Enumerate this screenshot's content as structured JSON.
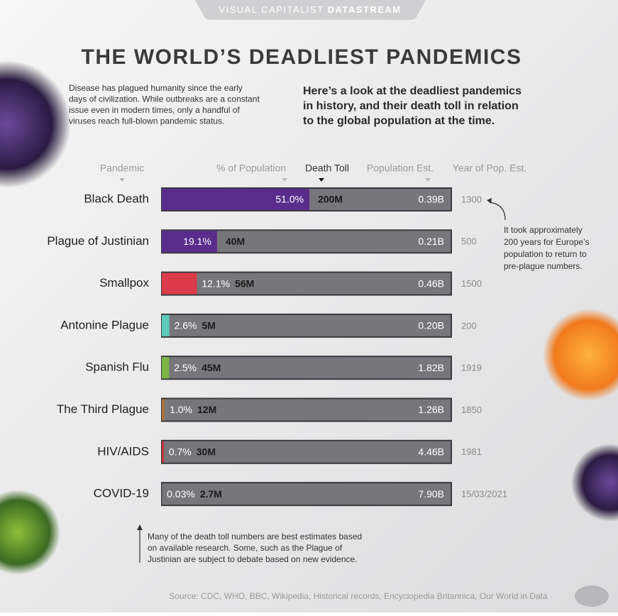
{
  "chart_data": {
    "type": "bar",
    "orientation": "horizontal",
    "brand": [
      "VISUAL CAPITALIST",
      "DATASTREAM"
    ],
    "title": "THE WORLD’S DEADLIEST PANDEMICS",
    "intro": [
      "Disease has plagued humanity since the early",
      "days of civilization. While outbreaks are a constant",
      "issue even in modern times, only a handful of",
      "viruses reach full-blown pandemic status."
    ],
    "subtitle": [
      "Here’s a look at the deadliest pandemics",
      "in history, and their death toll in relation",
      "to the global population at the time."
    ],
    "columns": [
      "Pandemic",
      "% of Population",
      "Death Toll",
      "Population Est.",
      "Year of Pop. Est."
    ],
    "categories": [
      "Black Death",
      "Plague of Justinian",
      "Smallpox",
      "Antonine Plague",
      "Spanish Flu",
      "The Third Plague",
      "HIV/AIDS",
      "COVID-19"
    ],
    "values": [
      51.0,
      19.1,
      12.1,
      2.6,
      2.5,
      1.0,
      0.7,
      0.03
    ],
    "value_labels": [
      "51.0%",
      "19.1%",
      "12.1%",
      "2.6%",
      "2.5%",
      "1.0%",
      "0.7%",
      "0.03%"
    ],
    "colors": [
      "#5a2d8c",
      "#5a2d8c",
      "#dc3b4b",
      "#5ccab8",
      "#7cb544",
      "#a8723c",
      "#c4303c",
      "#8a8a8a"
    ],
    "xlim": [
      0,
      100
    ],
    "death_toll": {
      "values": [
        200,
        40,
        56,
        5,
        45,
        12,
        30,
        2.7
      ],
      "value_labels": [
        "200M",
        "40M",
        "56M",
        "5M",
        "45M",
        "12M",
        "30M",
        "2.7M"
      ]
    },
    "population": {
      "values": [
        0.39,
        0.21,
        0.46,
        0.2,
        1.82,
        1.26,
        4.46,
        7.9
      ],
      "value_labels": [
        "0.39B",
        "0.21B",
        "0.46B",
        "0.20B",
        "1.82B",
        "1.26B",
        "4.46B",
        "7.90B"
      ]
    },
    "years": [
      "1300",
      "500",
      "1500",
      "200",
      "1919",
      "1850",
      "1981",
      "15/03/2021"
    ],
    "annotation": [
      "It took approximately",
      "200 years for Europe’s",
      "population to return to",
      "pre-plague numbers."
    ],
    "note": [
      "Many of the death toll numbers are best estimates based",
      "on available research. Some, such as the Plague of",
      "Justinian are subject to debate based on new evidence."
    ],
    "source": "Source: CDC, WHO, BBC, Wikipedia, Historical records, Encyclopedia Britannica, Our World in Data"
  }
}
